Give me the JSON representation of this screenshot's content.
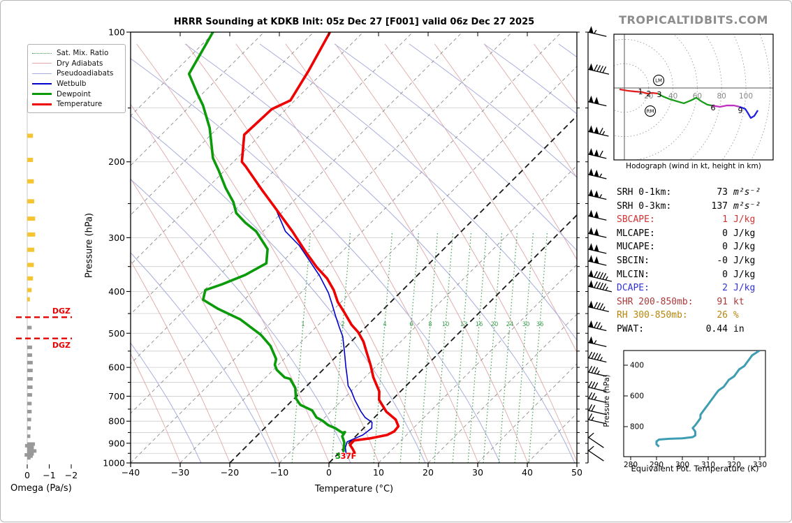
{
  "title": "HRRR Sounding at KDKB Init: 05z Dec 27 [F001] valid 06z Dec 27 2025",
  "watermark": "TROPICALTIDBITS.COM",
  "legend": [
    "Sat. Mix. Ratio",
    "Dry Adiabats",
    "Pseudoadiabats",
    "Wetbulb",
    "Dewpoint",
    "Temperature"
  ],
  "axes": {
    "temperature_label": "Temperature (°C)",
    "pressure_label": "Pressure (hPa)",
    "omega_label": "Omega (Pa/s)",
    "hodograph_caption": "Hodograph (wind in kt, height in km)",
    "thetae_xlabel": "Equivalent Pot. Temperature (K)",
    "thetae_ylabel": "Pressure (hPa)"
  },
  "surface_labels": {
    "dewpoint": "3",
    "temperature": "37F"
  },
  "dgz_label": "DGZ",
  "colors": {
    "temperature": "#ef0000",
    "dewpoint": "#0a9a0a",
    "wetbulb": "#0000cd",
    "dry_adiabat": "#e0a8a8",
    "pseudoadiabat": "#a8aedd",
    "mixing_ratio": "#3e9e50",
    "isotherm": "#8c8c8c",
    "isotherm_bold": "#1a1a1a",
    "gridline": "#cccccc",
    "omega_yellow": "#f5c431",
    "omega_gray": "#999999",
    "dgz": "#e60000",
    "thetae": "#3d9db3",
    "hodo_red": "#e02020",
    "hodo_green": "#1a9c1a",
    "hodo_magenta": "#c030c0",
    "hodo_blue": "#2020e0"
  },
  "stats_rows": [
    {
      "label": "SRH 0-1km:",
      "value": "73",
      "unit": "m²s⁻²",
      "unit_italic": true,
      "color": "#000000"
    },
    {
      "label": "SRH 0-3km:",
      "value": "137",
      "unit": "m²s⁻²",
      "unit_italic": true,
      "color": "#000000"
    },
    {
      "label": "SBCAPE:",
      "value": "1",
      "unit": "J/kg",
      "unit_italic": false,
      "color": "#d23232"
    },
    {
      "label": "MLCAPE:",
      "value": "0",
      "unit": "J/kg",
      "unit_italic": false,
      "color": "#000000"
    },
    {
      "label": "MUCAPE:",
      "value": "0",
      "unit": "J/kg",
      "unit_italic": false,
      "color": "#000000"
    },
    {
      "label": "SBCIN:",
      "value": "-0",
      "unit": "J/kg",
      "unit_italic": false,
      "color": "#000000"
    },
    {
      "label": "MLCIN:",
      "value": "0",
      "unit": "J/kg",
      "unit_italic": false,
      "color": "#000000"
    },
    {
      "label": "DCAPE:",
      "value": "2",
      "unit": "J/kg",
      "unit_italic": false,
      "color": "#3232d2"
    },
    {
      "label": "SHR 200-850mb:",
      "value": "91",
      "unit": "kt",
      "unit_italic": false,
      "color": "#aa3939"
    },
    {
      "label": "RH 300-850mb:",
      "value": "26",
      "unit": "%",
      "unit_italic": false,
      "color": "#b8860b"
    },
    {
      "label": "PWAT:",
      "value": "0.44",
      "unit": "in",
      "unit_italic": false,
      "color": "#000000"
    }
  ],
  "chart_data": {
    "skewt": {
      "type": "line",
      "temp_ticks": [
        -40,
        -30,
        -20,
        -10,
        0,
        10,
        20,
        30,
        40,
        50
      ],
      "pressure_ticks": [
        100,
        200,
        300,
        400,
        500,
        600,
        700,
        800,
        900,
        1000
      ],
      "xlim": [
        -40,
        50
      ],
      "plim": [
        100,
        1050
      ],
      "mixing_ratio_labels": [
        [
          1,
          433
        ],
        [
          2,
          490
        ],
        [
          4,
          550
        ],
        [
          6,
          588
        ],
        [
          8,
          615
        ],
        [
          10,
          637
        ],
        [
          13,
          663
        ],
        [
          16,
          685
        ],
        [
          20,
          707
        ],
        [
          24,
          729
        ],
        [
          30,
          752
        ],
        [
          36,
          772
        ]
      ],
      "series": [
        {
          "name": "Temperature",
          "points": [
            [
              100,
              -86.7
            ],
            [
              123,
              -83.2
            ],
            [
              144,
              -80.9
            ],
            [
              151,
              -82.9
            ],
            [
              173,
              -83.3
            ],
            [
              200,
              -78.3
            ],
            [
              205,
              -76.6
            ],
            [
              232,
              -68.7
            ],
            [
              255,
              -62.5
            ],
            [
              290,
              -54.1
            ],
            [
              325,
              -47.0
            ],
            [
              351,
              -42.0
            ],
            [
              373,
              -37.6
            ],
            [
              397,
              -33.9
            ],
            [
              423,
              -30.7
            ],
            [
              447,
              -27.3
            ],
            [
              478,
              -23.3
            ],
            [
              497,
              -20.5
            ],
            [
              523,
              -17.5
            ],
            [
              556,
              -14.5
            ],
            [
              592,
              -11.4
            ],
            [
              633,
              -8.3
            ],
            [
              682,
              -4.3
            ],
            [
              714,
              -2.6
            ],
            [
              760,
              1.2
            ],
            [
              793,
              4.7
            ],
            [
              822,
              6.6
            ],
            [
              845,
              6.8
            ],
            [
              861,
              6.1
            ],
            [
              877,
              3.3
            ],
            [
              887,
              0.5
            ],
            [
              908,
              0.6
            ],
            [
              927,
              1.9
            ],
            [
              945,
              3.0
            ]
          ]
        },
        {
          "name": "Dewpoint",
          "points": [
            [
              100,
              -110.3
            ],
            [
              125,
              -106.7
            ],
            [
              139,
              -101.0
            ],
            [
              148,
              -97.5
            ],
            [
              167,
              -91.6
            ],
            [
              196,
              -84.9
            ],
            [
              210,
              -81.1
            ],
            [
              230,
              -76.3
            ],
            [
              248,
              -71.9
            ],
            [
              263,
              -69.1
            ],
            [
              277,
              -65.3
            ],
            [
              290,
              -61.4
            ],
            [
              319,
              -55.5
            ],
            [
              344,
              -52.9
            ],
            [
              366,
              -54.8
            ],
            [
              385,
              -57.6
            ],
            [
              397,
              -59.8
            ],
            [
              418,
              -58.3
            ],
            [
              439,
              -53.4
            ],
            [
              464,
              -46.9
            ],
            [
              504,
              -39.6
            ],
            [
              535,
              -35.4
            ],
            [
              574,
              -31.6
            ],
            [
              592,
              -30.7
            ],
            [
              608,
              -29.3
            ],
            [
              633,
              -26.2
            ],
            [
              638,
              -24.8
            ],
            [
              670,
              -21.9
            ],
            [
              708,
              -19.7
            ],
            [
              733,
              -17.5
            ],
            [
              755,
              -14.0
            ],
            [
              784,
              -11.7
            ],
            [
              798,
              -9.8
            ],
            [
              817,
              -7.8
            ],
            [
              830,
              -5.8
            ],
            [
              851,
              -3.4
            ],
            [
              848,
              -3.0
            ],
            [
              867,
              -2.7
            ],
            [
              897,
              -1.0
            ],
            [
              938,
              0.5
            ]
          ]
        },
        {
          "name": "Wetbulb",
          "points": [
            [
              260,
              -61.4
            ],
            [
              290,
              -55.5
            ],
            [
              313,
              -49.8
            ],
            [
              341,
              -44.4
            ],
            [
              368,
              -39.6
            ],
            [
              403,
              -34.4
            ],
            [
              428,
              -31.4
            ],
            [
              456,
              -28.3
            ],
            [
              485,
              -25.2
            ],
            [
              509,
              -22.7
            ],
            [
              556,
              -19.0
            ],
            [
              598,
              -16.0
            ],
            [
              631,
              -13.7
            ],
            [
              662,
              -11.7
            ],
            [
              682,
              -9.9
            ],
            [
              714,
              -7.5
            ],
            [
              760,
              -3.9
            ],
            [
              784,
              -1.9
            ],
            [
              805,
              0.5
            ],
            [
              830,
              1.6
            ],
            [
              861,
              1.2
            ],
            [
              893,
              -0.6
            ],
            [
              921,
              0.2
            ],
            [
              945,
              1.3
            ]
          ]
        }
      ]
    },
    "wind_barbs": [
      [
        100,
        55
      ],
      [
        122,
        90
      ],
      [
        145,
        100
      ],
      [
        170,
        115
      ],
      [
        192,
        110
      ],
      [
        214,
        105
      ],
      [
        239,
        105
      ],
      [
        267,
        100
      ],
      [
        293,
        100
      ],
      [
        319,
        100
      ],
      [
        340,
        100
      ],
      [
        368,
        95
      ],
      [
        389,
        95
      ],
      [
        434,
        85
      ],
      [
        482,
        75
      ],
      [
        525,
        55
      ],
      [
        570,
        45
      ],
      [
        615,
        35
      ],
      [
        667,
        30
      ],
      [
        708,
        25
      ],
      [
        755,
        20
      ],
      [
        793,
        15
      ],
      [
        871,
        10
      ],
      [
        935,
        10
      ]
    ],
    "omega": {
      "type": "bar",
      "ticks": [
        0,
        -1,
        -2
      ],
      "dgz_pressures": [
        459,
        514
      ],
      "yellow_bars": [
        [
          149,
          -0.22
        ],
        [
          174,
          -0.26
        ],
        [
          198,
          -0.26
        ],
        [
          222,
          -0.3
        ],
        [
          247,
          -0.32
        ],
        [
          271,
          -0.36
        ],
        [
          295,
          -0.36
        ],
        [
          320,
          -0.32
        ],
        [
          347,
          -0.3
        ],
        [
          373,
          -0.26
        ],
        [
          397,
          -0.2
        ],
        [
          417,
          -0.12
        ]
      ],
      "gray_bars": [
        [
          485,
          -0.2
        ],
        [
          539,
          -0.22
        ],
        [
          562,
          -0.22
        ],
        [
          585,
          -0.25
        ],
        [
          610,
          -0.25
        ],
        [
          638,
          -0.25
        ],
        [
          667,
          -0.24
        ],
        [
          695,
          -0.22
        ],
        [
          728,
          -0.2
        ],
        [
          760,
          -0.2
        ],
        [
          793,
          -0.18
        ],
        [
          830,
          -0.16
        ],
        [
          867,
          -0.14
        ],
        [
          904,
          -0.35
        ],
        [
          912,
          0.1
        ],
        [
          921,
          -0.3
        ],
        [
          938,
          -0.42
        ],
        [
          953,
          -0.3
        ],
        [
          958,
          0.12
        ],
        [
          964,
          -0.25
        ],
        [
          973,
          -0.15
        ]
      ]
    },
    "hodograph": {
      "type": "line",
      "ring_step_kt": 20,
      "ring_labels": [
        20,
        40,
        60,
        80,
        100
      ],
      "segments": [
        {
          "color_key": "hodo_red",
          "points_kt": [
            [
              -4.0,
              -1.1
            ],
            [
              2.9,
              -2.3
            ],
            [
              8.6,
              -2.9
            ],
            [
              14.4,
              -3.4
            ],
            [
              19.0,
              -4.6
            ],
            [
              23.0,
              -4.0
            ],
            [
              27.6,
              -4.6
            ]
          ]
        },
        {
          "color_key": "hodo_green",
          "points_kt": [
            [
              27.6,
              -4.6
            ],
            [
              31.6,
              -6.9
            ],
            [
              37.4,
              -9.2
            ],
            [
              43.1,
              -10.9
            ],
            [
              48.9,
              -12.6
            ],
            [
              54.6,
              -10.3
            ],
            [
              59.2,
              -8.0
            ],
            [
              63.2,
              -10.9
            ],
            [
              68.4,
              -13.8
            ],
            [
              71.8,
              -14.4
            ]
          ]
        },
        {
          "color_key": "hodo_magenta",
          "points_kt": [
            [
              71.8,
              -14.4
            ],
            [
              78.7,
              -15.5
            ],
            [
              84.5,
              -14.4
            ],
            [
              90.2,
              -14.4
            ],
            [
              94.8,
              -15.5
            ]
          ]
        },
        {
          "color_key": "hodo_blue",
          "points_kt": [
            [
              94.8,
              -15.5
            ],
            [
              99.4,
              -17.2
            ],
            [
              101.7,
              -20.7
            ],
            [
              104.0,
              -24.7
            ],
            [
              106.9,
              -23.0
            ],
            [
              109.8,
              -18.4
            ]
          ]
        }
      ],
      "height_labels": [
        {
          "text": "1",
          "u": 13.2,
          "v": -2.9
        },
        {
          "text": "2",
          "u": 20.1,
          "v": -4.6
        },
        {
          "text": "3",
          "u": 28.7,
          "v": -5.2
        },
        {
          "text": "6",
          "u": 73.0,
          "v": -16.1
        },
        {
          "text": "9",
          "u": 95.4,
          "v": -18.4
        }
      ],
      "storm_motions": [
        {
          "text": "LM",
          "u": 28.2,
          "v": 6.3
        },
        {
          "text": "RM",
          "u": 21.3,
          "v": -19.0
        }
      ]
    },
    "theta_e": {
      "type": "line",
      "x_ticks": [
        280,
        290,
        300,
        310,
        320,
        330
      ],
      "y_ticks": [
        400,
        600,
        800
      ],
      "xlim": [
        280,
        330
      ],
      "points": [
        [
          291,
          930
        ],
        [
          290,
          915
        ],
        [
          290,
          896
        ],
        [
          291,
          884
        ],
        [
          295,
          879
        ],
        [
          300,
          876
        ],
        [
          304,
          868
        ],
        [
          305,
          858
        ],
        [
          305,
          845
        ],
        [
          305,
          832
        ],
        [
          304,
          809
        ],
        [
          305,
          791
        ],
        [
          306,
          768
        ],
        [
          307,
          745
        ],
        [
          307,
          723
        ],
        [
          308,
          700
        ],
        [
          309,
          677
        ],
        [
          310,
          655
        ],
        [
          311,
          632
        ],
        [
          312,
          609
        ],
        [
          313,
          586
        ],
        [
          314,
          564
        ],
        [
          316,
          541
        ],
        [
          317,
          518
        ],
        [
          318,
          495
        ],
        [
          320,
          473
        ],
        [
          321,
          450
        ],
        [
          322,
          427
        ],
        [
          324,
          405
        ],
        [
          325,
          382
        ],
        [
          326,
          359
        ],
        [
          327,
          336
        ],
        [
          329,
          314
        ],
        [
          330,
          303
        ]
      ]
    }
  }
}
